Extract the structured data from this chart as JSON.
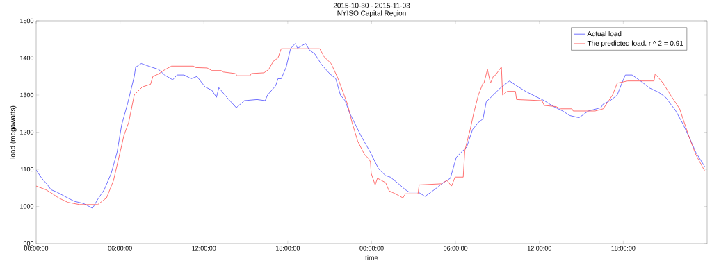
{
  "chart_data": {
    "type": "line",
    "title": "2015-10-30 - 2015-11-03",
    "subtitle": "NYISO Capital Region",
    "xlabel": "time",
    "ylabel": "load (megawatts)",
    "xlim": [
      "2015-10-30T00:00",
      "2015-11-01T00:00"
    ],
    "ylim": [
      900,
      1500
    ],
    "xticks": [
      {
        "value": "2015-10-30T00:00",
        "label": "00:00:00"
      },
      {
        "value": "2015-10-30T06:00",
        "label": "06:00:00"
      },
      {
        "value": "2015-10-30T12:00",
        "label": "12:00:00"
      },
      {
        "value": "2015-10-30T18:00",
        "label": "18:00:00"
      },
      {
        "value": "2015-10-31T00:00",
        "label": "00:00:00"
      },
      {
        "value": "2015-10-31T06:00",
        "label": "06:00:00"
      },
      {
        "value": "2015-10-31T12:00",
        "label": "12:00:00"
      },
      {
        "value": "2015-10-31T18:00",
        "label": "18:00:00"
      }
    ],
    "yticks": [
      900,
      1000,
      1100,
      1200,
      1300,
      1400,
      1500
    ],
    "legend": "top right",
    "marker": "none",
    "line_style": "solid",
    "series": [
      {
        "name": "Actual load",
        "color": "#4d4dff",
        "x": [
          "2015-10-30T00:00",
          "2015-10-30T00:24",
          "2015-10-30T00:49",
          "2015-10-30T01:04",
          "2015-10-30T01:28",
          "2015-10-30T02:03",
          "2015-10-30T02:43",
          "2015-10-30T03:23",
          "2015-10-30T04:02",
          "2015-10-30T04:22",
          "2015-10-30T04:52",
          "2015-10-30T05:22",
          "2015-10-30T05:47",
          "2015-10-30T06:07",
          "2015-10-30T06:32",
          "2015-10-30T07:01",
          "2015-10-30T07:07",
          "2015-10-30T07:31",
          "2015-10-30T08:16",
          "2015-10-30T08:46",
          "2015-10-30T09:11",
          "2015-10-30T09:46",
          "2015-10-30T10:05",
          "2015-10-30T10:35",
          "2015-10-30T11:05",
          "2015-10-30T11:30",
          "2015-10-30T12:05",
          "2015-10-30T12:34",
          "2015-10-30T12:54",
          "2015-10-30T13:04",
          "2015-10-30T13:34",
          "2015-10-30T14:19",
          "2015-10-30T14:54",
          "2015-10-30T15:48",
          "2015-10-30T16:23",
          "2015-10-30T16:33",
          "2015-10-30T17:08",
          "2015-10-30T17:18",
          "2015-10-30T17:32",
          "2015-10-30T17:53",
          "2015-10-30T18:12",
          "2015-10-30T18:32",
          "2015-10-30T18:42",
          "2015-10-30T19:17",
          "2015-10-30T19:32",
          "2015-10-30T19:57",
          "2015-10-30T20:26",
          "2015-10-30T21:01",
          "2015-10-30T21:26",
          "2015-10-30T21:46",
          "2015-10-30T22:06",
          "2015-10-30T22:26",
          "2015-10-30T22:46",
          "2015-10-30T23:16",
          "2015-10-30T23:50",
          "2015-10-31T00:30",
          "2015-10-31T01:00",
          "2015-10-31T01:20",
          "2015-10-31T01:50",
          "2015-10-31T02:25",
          "2015-10-31T02:40",
          "2015-10-31T03:19",
          "2015-10-31T03:49",
          "2015-10-31T04:29",
          "2015-10-31T05:08",
          "2015-10-31T05:38",
          "2015-10-31T06:03",
          "2015-10-31T06:23",
          "2015-10-31T06:48",
          "2015-10-31T07:13",
          "2015-10-31T07:38",
          "2015-10-31T07:58",
          "2015-10-31T08:12",
          "2015-10-31T08:42",
          "2015-10-31T09:12",
          "2015-10-31T09:52",
          "2015-10-31T10:22",
          "2015-10-31T11:01",
          "2015-10-31T11:41",
          "2015-10-31T12:21",
          "2015-10-31T13:01",
          "2015-10-31T13:40",
          "2015-10-31T14:10",
          "2015-10-31T14:50",
          "2015-10-31T15:30",
          "2015-10-31T16:24",
          "2015-10-31T16:34",
          "2015-10-31T17:04",
          "2015-10-31T17:34",
          "2015-10-31T17:54",
          "2015-10-31T18:09",
          "2015-10-31T18:38",
          "2015-10-31T19:14",
          "2015-10-31T19:53",
          "2015-10-31T20:33",
          "2015-10-31T21:02",
          "2015-10-31T21:23",
          "2015-10-31T21:43",
          "2015-10-31T22:13",
          "2015-10-31T22:42",
          "2015-10-31T23:12",
          "2015-10-31T23:50"
        ],
        "values": [
          1098,
          1076,
          1058,
          1045,
          1039,
          1027,
          1014,
          1008,
          995,
          1017,
          1045,
          1089,
          1145,
          1220,
          1276,
          1350,
          1375,
          1385,
          1375,
          1369,
          1354,
          1341,
          1354,
          1354,
          1344,
          1350,
          1322,
          1313,
          1294,
          1320,
          1297,
          1266,
          1285,
          1288,
          1285,
          1300,
          1325,
          1344,
          1344,
          1375,
          1425,
          1439,
          1426,
          1439,
          1422,
          1410,
          1381,
          1357,
          1344,
          1300,
          1285,
          1251,
          1226,
          1188,
          1151,
          1101,
          1083,
          1079,
          1064,
          1045,
          1039,
          1039,
          1027,
          1045,
          1064,
          1076,
          1132,
          1145,
          1160,
          1207,
          1226,
          1236,
          1282,
          1300,
          1319,
          1338,
          1325,
          1310,
          1297,
          1285,
          1269,
          1257,
          1245,
          1239,
          1257,
          1266,
          1276,
          1285,
          1300,
          1332,
          1354,
          1354,
          1338,
          1319,
          1307,
          1294,
          1276,
          1260,
          1226,
          1188,
          1145,
          1107
        ]
      },
      {
        "name": "The predicted load, r ^ 2 = 0.91",
        "color": "#ff4d4d",
        "x": [
          "2015-10-30T00:00",
          "2015-10-30T00:42",
          "2015-10-30T01:06",
          "2015-10-30T01:36",
          "2015-10-30T02:16",
          "2015-10-30T03:06",
          "2015-10-30T04:24",
          "2015-10-30T05:02",
          "2015-10-30T05:32",
          "2015-10-30T06:02",
          "2015-10-30T06:17",
          "2015-10-30T06:37",
          "2015-10-30T07:01",
          "2015-10-30T07:36",
          "2015-10-30T08:11",
          "2015-10-30T08:21",
          "2015-10-30T08:46",
          "2015-10-30T09:06",
          "2015-10-30T09:41",
          "2015-10-30T11:15",
          "2015-10-30T11:25",
          "2015-10-30T12:14",
          "2015-10-30T12:34",
          "2015-10-30T13:14",
          "2015-10-30T13:24",
          "2015-10-30T14:14",
          "2015-10-30T14:24",
          "2015-10-30T15:18",
          "2015-10-30T15:24",
          "2015-10-30T16:18",
          "2015-10-30T16:38",
          "2015-10-30T16:58",
          "2015-10-30T17:18",
          "2015-10-30T17:32",
          "2015-10-30T20:17",
          "2015-10-30T20:36",
          "2015-10-30T21:06",
          "2015-10-30T21:36",
          "2015-10-30T22:16",
          "2015-10-30T22:36",
          "2015-10-30T23:00",
          "2015-10-30T23:30",
          "2015-10-30T23:46",
          "2015-10-30T23:55",
          "2015-10-30T23:58",
          "2015-10-31T00:15",
          "2015-10-31T00:25",
          "2015-10-31T01:00",
          "2015-10-31T01:15",
          "2015-10-31T01:25",
          "2015-10-31T01:45",
          "2015-10-31T02:14",
          "2015-10-31T02:25",
          "2015-10-31T03:19",
          "2015-10-31T03:24",
          "2015-10-31T04:59",
          "2015-10-31T05:23",
          "2015-10-31T05:43",
          "2015-10-31T05:58",
          "2015-10-31T06:33",
          "2015-10-31T06:40",
          "2015-10-31T07:03",
          "2015-10-31T07:18",
          "2015-10-31T07:38",
          "2015-10-31T07:58",
          "2015-10-31T08:02",
          "2015-10-31T08:17",
          "2015-10-31T08:30",
          "2015-10-31T08:42",
          "2015-10-31T08:52",
          "2015-10-31T09:17",
          "2015-10-31T09:22",
          "2015-10-31T09:42",
          "2015-10-31T10:17",
          "2015-10-31T10:22",
          "2015-10-31T12:11",
          "2015-10-31T12:21",
          "2015-10-31T13:11",
          "2015-10-31T13:31",
          "2015-10-31T14:20",
          "2015-10-31T14:25",
          "2015-10-31T15:59",
          "2015-10-31T16:34",
          "2015-10-31T17:14",
          "2015-10-31T17:34",
          "2015-10-31T18:19",
          "2015-10-31T20:12",
          "2015-10-31T20:17",
          "2015-10-31T20:51",
          "2015-10-31T21:23",
          "2015-10-31T22:02",
          "2015-10-31T22:42",
          "2015-10-31T23:12",
          "2015-10-31T23:50"
        ],
        "values": [
          1055,
          1045,
          1036,
          1023,
          1011,
          1005,
          1005,
          1023,
          1070,
          1151,
          1192,
          1226,
          1300,
          1322,
          1329,
          1350,
          1357,
          1366,
          1378,
          1378,
          1374,
          1373,
          1366,
          1366,
          1362,
          1358,
          1352,
          1352,
          1358,
          1360,
          1369,
          1391,
          1400,
          1425,
          1425,
          1403,
          1385,
          1344,
          1276,
          1226,
          1176,
          1139,
          1130,
          1120,
          1089,
          1058,
          1076,
          1064,
          1042,
          1039,
          1033,
          1023,
          1034,
          1034,
          1058,
          1061,
          1070,
          1055,
          1079,
          1079,
          1151,
          1207,
          1251,
          1300,
          1332,
          1332,
          1369,
          1332,
          1350,
          1354,
          1376,
          1300,
          1310,
          1310,
          1288,
          1285,
          1272,
          1269,
          1263,
          1263,
          1257,
          1257,
          1263,
          1300,
          1332,
          1338,
          1338,
          1357,
          1332,
          1300,
          1263,
          1188,
          1139,
          1095
        ]
      }
    ]
  }
}
